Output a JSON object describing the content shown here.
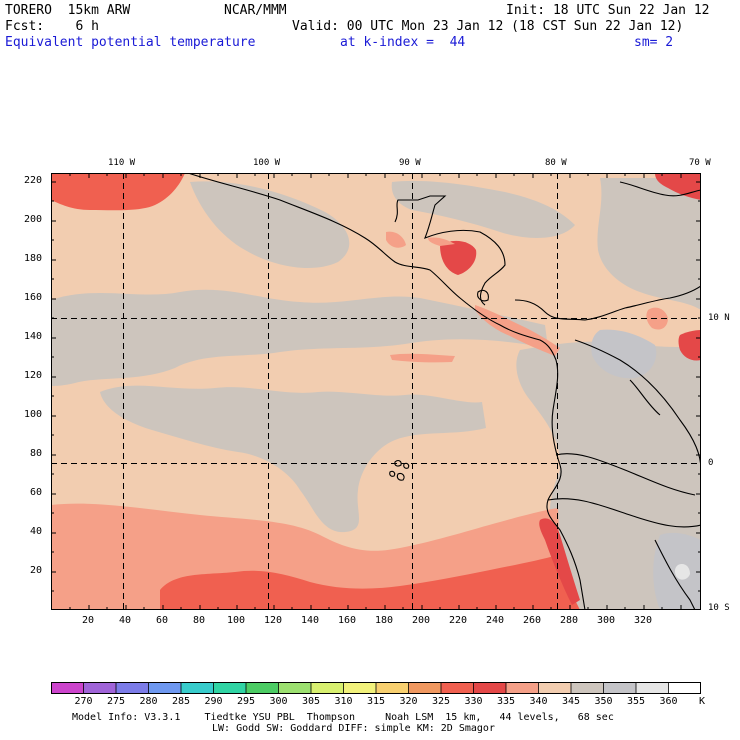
{
  "header": {
    "model": "TORERO  15km ARW",
    "org": "NCAR/MMM",
    "init": "Init: 18 UTC Sun 22 Jan 12",
    "fcst": "Fcst:    6 h",
    "valid": "Valid: 00 UTC Mon 23 Jan 12 (18 CST Sun 22 Jan 12)",
    "field": "Equivalent potential temperature",
    "level": "at k-index =  44",
    "smooth": "sm= 2"
  },
  "map": {
    "y_ticks": [
      "220",
      "200",
      "180",
      "160",
      "140",
      "120",
      "100",
      "80",
      "60",
      "40",
      "20"
    ],
    "x_ticks": [
      "20",
      "40",
      "60",
      "80",
      "100",
      "120",
      "140",
      "160",
      "180",
      "200",
      "220",
      "240",
      "260",
      "280",
      "300",
      "320"
    ],
    "lon_labels": [
      "110 W",
      "100 W",
      "90 W",
      "80 W",
      "70 W"
    ],
    "lat_labels": [
      "10 N",
      "0",
      "10 S"
    ]
  },
  "colorbar": {
    "unit": "K",
    "labels": [
      "270",
      "275",
      "280",
      "285",
      "290",
      "295",
      "300",
      "305",
      "310",
      "315",
      "320",
      "325",
      "330",
      "335",
      "340",
      "345",
      "350",
      "355",
      "360"
    ],
    "colors": [
      "#cc44cc",
      "#a064d8",
      "#7c7ce8",
      "#6e98f0",
      "#38cccc",
      "#30d4a4",
      "#4ccc64",
      "#9ce070",
      "#d8f070",
      "#f2f27c",
      "#f8d070",
      "#f09860",
      "#f06050",
      "#e44848",
      "#f5a088",
      "#f2cdb0",
      "#cdc5bd",
      "#c4c4c8",
      "#e6e6e6",
      "#ffffff"
    ]
  },
  "footer": {
    "line1": "Model Info: V3.3.1    Tiedtke YSU PBL  Thompson     Noah LSM  15 km,   44 levels,   68 sec",
    "line2": "LW: Godd SW: Goddard DIFF: simple KM: 2D Smagor"
  }
}
